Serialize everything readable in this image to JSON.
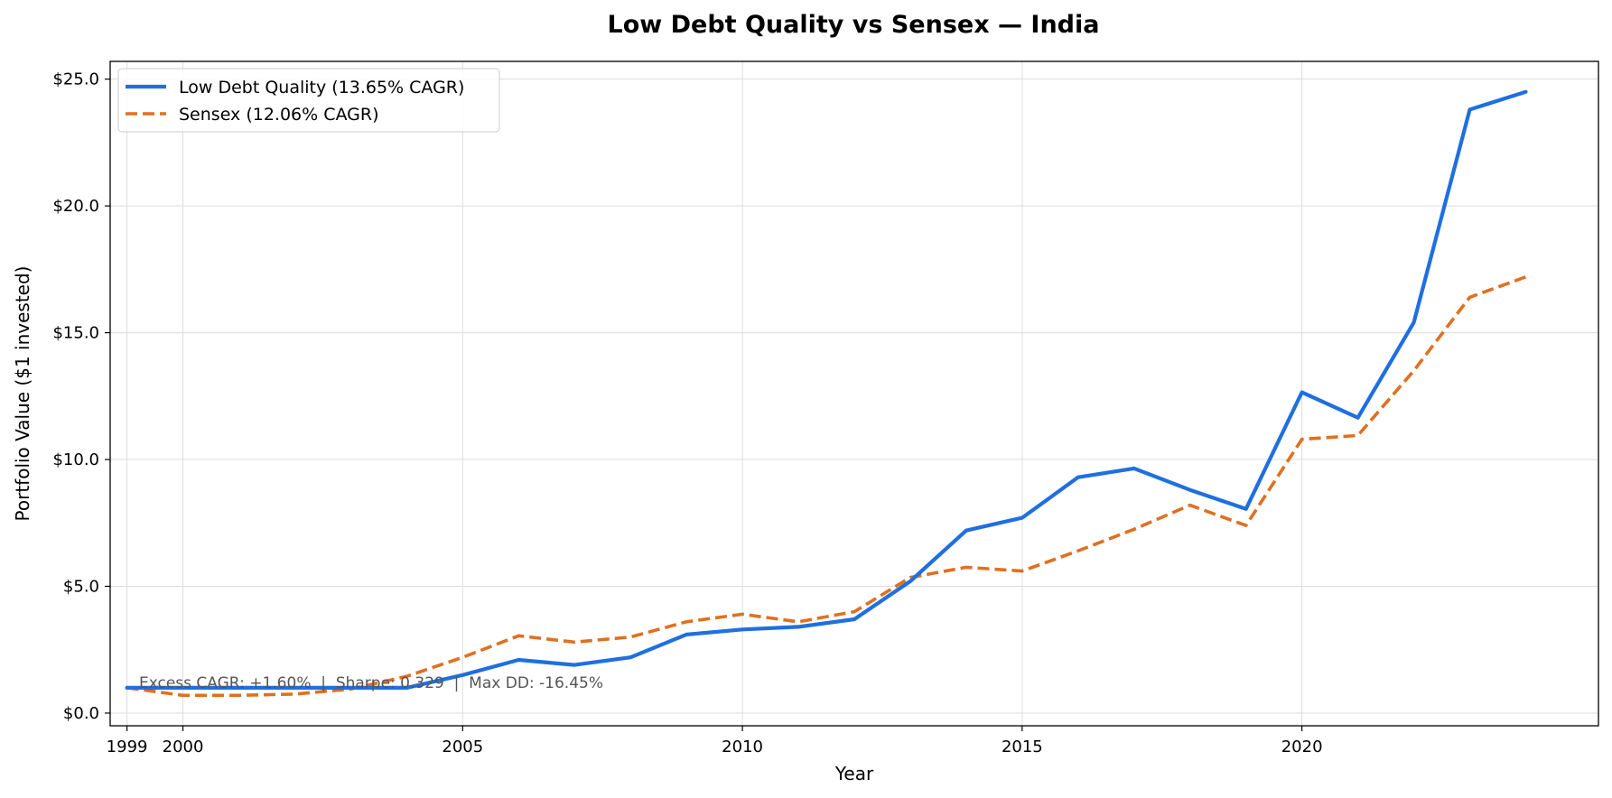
{
  "chart_data": {
    "type": "line",
    "title": "Low Debt Quality vs Sensex — India",
    "xlabel": "Year",
    "ylabel": "Portfolio Value ($1 invested)",
    "xlim": [
      1998.7,
      2025.3
    ],
    "ylim": [
      -0.5,
      25.7
    ],
    "x_ticks": [
      1999,
      2000,
      2005,
      2010,
      2015,
      2020
    ],
    "y_ticks": [
      0,
      5,
      10,
      15,
      20,
      25
    ],
    "y_tick_labels": [
      "$0.0",
      "$5.0",
      "$10.0",
      "$15.0",
      "$20.0",
      "$25.0"
    ],
    "grid": true,
    "legend_position": "top-left",
    "x": [
      1999,
      2000,
      2001,
      2002,
      2003,
      2004,
      2005,
      2006,
      2007,
      2008,
      2009,
      2010,
      2011,
      2012,
      2013,
      2014,
      2015,
      2016,
      2017,
      2018,
      2019,
      2020,
      2021,
      2022,
      2023,
      2024
    ],
    "series": [
      {
        "name": "Low Debt Quality (13.65% CAGR)",
        "color": "#1f6fe0",
        "style": "solid",
        "values": [
          1.0,
          1.0,
          1.0,
          1.0,
          1.0,
          1.0,
          1.5,
          2.1,
          1.9,
          2.2,
          3.1,
          3.3,
          3.4,
          3.7,
          5.2,
          7.2,
          7.7,
          9.3,
          9.65,
          8.8,
          8.05,
          12.65,
          11.65,
          15.4,
          23.8,
          24.5
        ]
      },
      {
        "name": "Sensex (12.06% CAGR)",
        "color": "#e07020",
        "style": "dashed",
        "values": [
          1.0,
          0.7,
          0.7,
          0.75,
          0.95,
          1.45,
          2.2,
          3.05,
          2.8,
          3.0,
          3.6,
          3.9,
          3.6,
          4.0,
          5.35,
          5.75,
          5.6,
          6.4,
          7.25,
          8.2,
          7.4,
          10.8,
          10.95,
          13.5,
          16.4,
          17.2
        ]
      }
    ],
    "annotation": "Excess CAGR: +1.60%  |  Sharpe: 0.329  |  Max DD: -16.45%"
  }
}
